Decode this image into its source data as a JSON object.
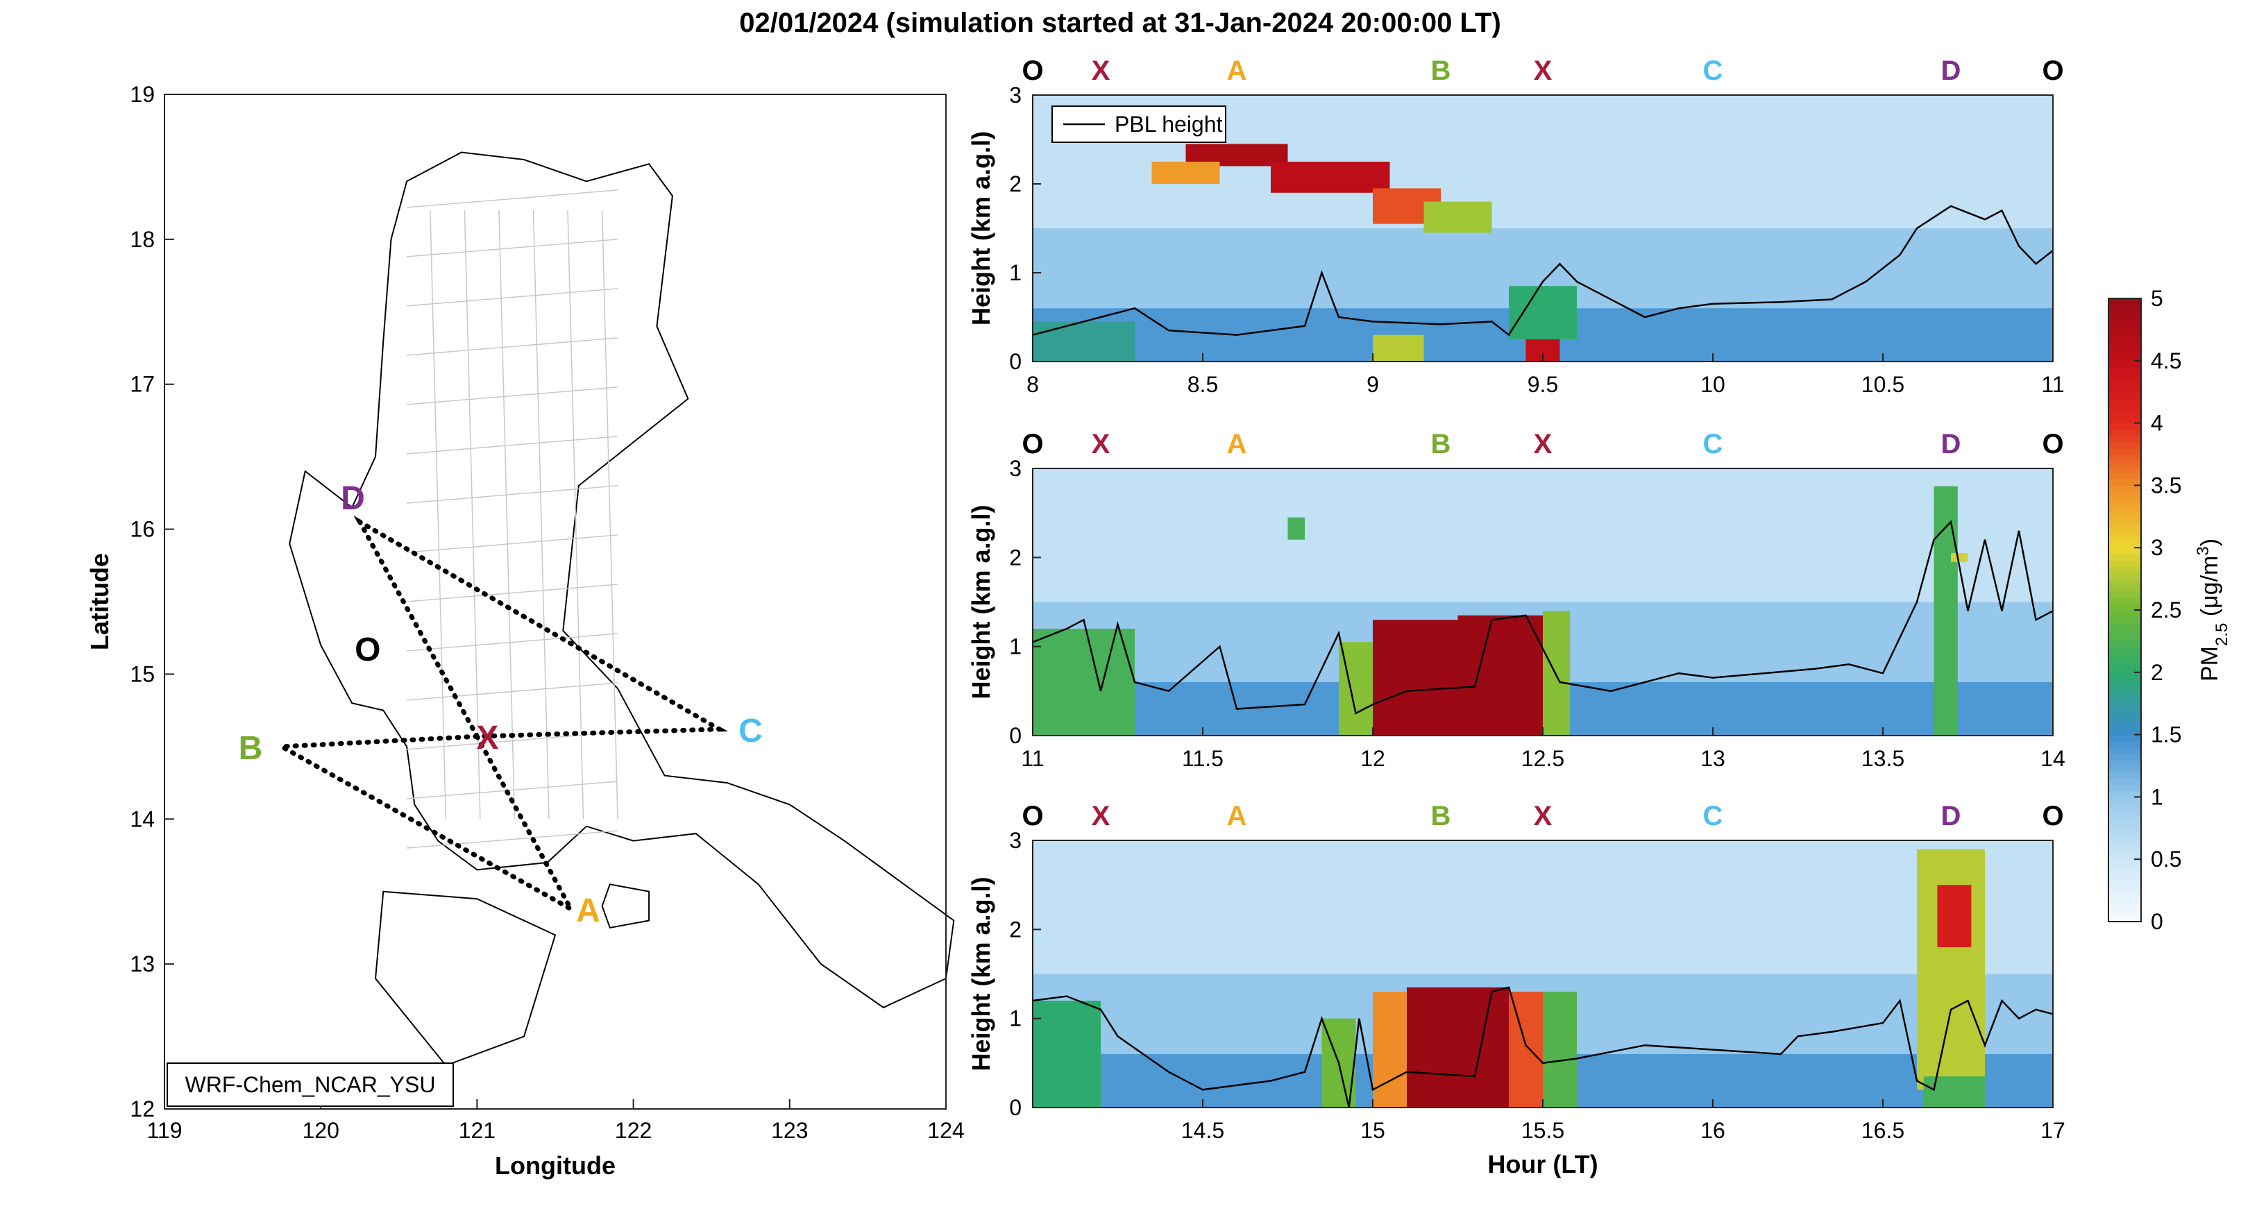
{
  "title": "02/01/2024 (simulation started at 31-Jan-2024 20:00:00 LT)",
  "colors": {
    "O": "#000000",
    "X": "#a8193a",
    "A": "#f2a81d",
    "B": "#77ac30",
    "C": "#4dbeee",
    "D": "#7e2f8e",
    "pbl": "#000000",
    "route": "#000000",
    "province": "#c8c8c8"
  },
  "map": {
    "xlabel": "Longitude",
    "ylabel": "Latitude",
    "xlim": [
      119,
      124
    ],
    "ylim": [
      12,
      19
    ],
    "xticks": [
      "119",
      "120",
      "121",
      "122",
      "123",
      "124"
    ],
    "yticks": [
      "12",
      "13",
      "14",
      "15",
      "16",
      "17",
      "18",
      "19"
    ],
    "model_label": "WRF-Chem_NCAR_YSU",
    "points": [
      {
        "label": "O",
        "lon": 120.3,
        "lat": 15.18
      },
      {
        "label": "X",
        "lon": 121.0,
        "lat": 14.57
      },
      {
        "label": "A",
        "lon": 121.6,
        "lat": 13.38
      },
      {
        "label": "B",
        "lon": 119.75,
        "lat": 14.5
      },
      {
        "label": "C",
        "lon": 122.55,
        "lat": 14.62
      },
      {
        "label": "D",
        "lon": 120.25,
        "lat": 16.05
      }
    ],
    "route": [
      "X",
      "A",
      "B",
      "X",
      "C",
      "D",
      "X"
    ]
  },
  "point_labels_top": [
    "O",
    "X",
    "A",
    "B",
    "X",
    "C",
    "D",
    "O"
  ],
  "colorbar": {
    "label_main": "PM",
    "label_sub": "2.5",
    "label_unit": " (μg/m",
    "label_unit_sup": "3",
    "label_close": ")",
    "range": [
      0,
      5
    ],
    "ticks": [
      "0",
      "0.5",
      "1",
      "1.5",
      "2",
      "2.5",
      "3",
      "3.5",
      "4",
      "4.5",
      "5"
    ]
  },
  "legend": {
    "pbl": "PBL height"
  },
  "chart_data": [
    {
      "type": "heatmap",
      "panel": 1,
      "xlim": [
        8,
        11
      ],
      "ylim": [
        0,
        3
      ],
      "xticks": [
        "8",
        "8.5",
        "9",
        "9.5",
        "10",
        "10.5",
        "11"
      ],
      "yticks": [
        "0",
        "1",
        "2",
        "3"
      ],
      "ylabel": "Height (km a.g.l)",
      "xlabel": "",
      "point_hours": [
        8.0,
        8.2,
        8.6,
        9.2,
        9.5,
        10.0,
        10.7,
        11.0
      ],
      "pbl_height": [
        [
          8.0,
          0.3
        ],
        [
          8.1,
          0.4
        ],
        [
          8.2,
          0.5
        ],
        [
          8.3,
          0.6
        ],
        [
          8.4,
          0.35
        ],
        [
          8.6,
          0.3
        ],
        [
          8.8,
          0.4
        ],
        [
          8.85,
          1.0
        ],
        [
          8.9,
          0.5
        ],
        [
          9.0,
          0.45
        ],
        [
          9.2,
          0.42
        ],
        [
          9.35,
          0.45
        ],
        [
          9.4,
          0.3
        ],
        [
          9.5,
          0.9
        ],
        [
          9.55,
          1.1
        ],
        [
          9.6,
          0.9
        ],
        [
          9.8,
          0.5
        ],
        [
          9.9,
          0.6
        ],
        [
          10.0,
          0.65
        ],
        [
          10.2,
          0.67
        ],
        [
          10.35,
          0.7
        ],
        [
          10.45,
          0.9
        ],
        [
          10.55,
          1.2
        ],
        [
          10.6,
          1.5
        ],
        [
          10.7,
          1.75
        ],
        [
          10.8,
          1.6
        ],
        [
          10.85,
          1.7
        ],
        [
          10.9,
          1.3
        ],
        [
          10.95,
          1.1
        ],
        [
          11.0,
          1.25
        ]
      ],
      "pm25_features": [
        {
          "t0": 8.45,
          "t1": 8.75,
          "z0": 2.2,
          "z1": 2.45,
          "v": 4.8
        },
        {
          "t0": 8.7,
          "t1": 9.05,
          "z0": 1.9,
          "z1": 2.25,
          "v": 4.6
        },
        {
          "t0": 9.0,
          "t1": 9.2,
          "z0": 1.55,
          "z1": 1.95,
          "v": 3.8
        },
        {
          "t0": 9.15,
          "t1": 9.35,
          "z0": 1.45,
          "z1": 1.8,
          "v": 2.7
        },
        {
          "t0": 8.35,
          "t1": 8.55,
          "z0": 2.0,
          "z1": 2.25,
          "v": 3.4
        },
        {
          "t0": 8.05,
          "t1": 8.25,
          "z0": 0.0,
          "z1": 0.22,
          "v": 4.9
        },
        {
          "t0": 9.45,
          "t1": 9.55,
          "z0": 0.0,
          "z1": 0.25,
          "v": 4.5
        },
        {
          "t0": 9.0,
          "t1": 9.15,
          "z0": 0.0,
          "z1": 0.3,
          "v": 2.8
        },
        {
          "t0": 8.0,
          "t1": 8.3,
          "z0": 0.0,
          "z1": 0.45,
          "v": 1.8
        },
        {
          "t0": 9.4,
          "t1": 9.6,
          "z0": 0.25,
          "z1": 0.85,
          "v": 2.0
        }
      ]
    },
    {
      "type": "heatmap",
      "panel": 2,
      "xlim": [
        11,
        14
      ],
      "ylim": [
        0,
        3
      ],
      "xticks": [
        "11",
        "11.5",
        "12",
        "12.5",
        "13",
        "13.5",
        "14"
      ],
      "yticks": [
        "0",
        "1",
        "2",
        "3"
      ],
      "ylabel": "Height (km a.g.l)",
      "xlabel": "",
      "point_hours": [
        11.0,
        11.2,
        11.6,
        12.2,
        12.5,
        13.0,
        13.7,
        14.0
      ],
      "pbl_height": [
        [
          11.0,
          1.05
        ],
        [
          11.1,
          1.2
        ],
        [
          11.15,
          1.3
        ],
        [
          11.2,
          0.5
        ],
        [
          11.25,
          1.25
        ],
        [
          11.3,
          0.6
        ],
        [
          11.4,
          0.5
        ],
        [
          11.55,
          1.0
        ],
        [
          11.6,
          0.3
        ],
        [
          11.8,
          0.35
        ],
        [
          11.9,
          1.15
        ],
        [
          11.95,
          0.25
        ],
        [
          12.0,
          0.35
        ],
        [
          12.1,
          0.5
        ],
        [
          12.3,
          0.55
        ],
        [
          12.35,
          1.3
        ],
        [
          12.45,
          1.35
        ],
        [
          12.55,
          0.6
        ],
        [
          12.7,
          0.5
        ],
        [
          12.9,
          0.7
        ],
        [
          13.0,
          0.65
        ],
        [
          13.3,
          0.75
        ],
        [
          13.4,
          0.8
        ],
        [
          13.5,
          0.7
        ],
        [
          13.55,
          1.1
        ],
        [
          13.6,
          1.5
        ],
        [
          13.65,
          2.2
        ],
        [
          13.7,
          2.4
        ],
        [
          13.75,
          1.4
        ],
        [
          13.8,
          2.2
        ],
        [
          13.85,
          1.4
        ],
        [
          13.9,
          2.3
        ],
        [
          13.95,
          1.3
        ],
        [
          14.0,
          1.4
        ]
      ],
      "pm25_features": [
        {
          "t0": 12.0,
          "t1": 12.5,
          "z0": 0.0,
          "z1": 1.3,
          "v": 5.0
        },
        {
          "t0": 12.25,
          "t1": 12.5,
          "z0": 0.0,
          "z1": 1.35,
          "v": 5.0
        },
        {
          "t0": 11.9,
          "t1": 12.0,
          "z0": 0.0,
          "z1": 1.05,
          "v": 2.6
        },
        {
          "t0": 12.5,
          "t1": 12.58,
          "z0": 0.0,
          "z1": 1.4,
          "v": 2.6
        },
        {
          "t0": 11.0,
          "t1": 11.3,
          "z0": 0.0,
          "z1": 1.2,
          "v": 2.2
        },
        {
          "t0": 11.75,
          "t1": 11.8,
          "z0": 2.2,
          "z1": 2.45,
          "v": 2.2
        },
        {
          "t0": 13.65,
          "t1": 13.72,
          "z0": 0.0,
          "z1": 2.8,
          "v": 2.2
        },
        {
          "t0": 13.7,
          "t1": 13.75,
          "z0": 1.95,
          "z1": 2.05,
          "v": 2.9
        }
      ]
    },
    {
      "type": "heatmap",
      "panel": 3,
      "xlim": [
        14,
        17
      ],
      "ylim": [
        0,
        3
      ],
      "xticks": [
        "14.5",
        "15",
        "15.5",
        "16",
        "16.5",
        "17"
      ],
      "yticks": [
        "0",
        "1",
        "2",
        "3"
      ],
      "ylabel": "Height (km a.g.l)",
      "xlabel": "Hour (LT)",
      "point_hours": [
        14.0,
        14.2,
        14.6,
        15.2,
        15.5,
        16.0,
        16.7,
        17.0
      ],
      "pbl_height": [
        [
          14.0,
          1.2
        ],
        [
          14.1,
          1.25
        ],
        [
          14.2,
          1.1
        ],
        [
          14.25,
          0.8
        ],
        [
          14.4,
          0.4
        ],
        [
          14.5,
          0.2
        ],
        [
          14.7,
          0.3
        ],
        [
          14.8,
          0.4
        ],
        [
          14.85,
          1.0
        ],
        [
          14.9,
          0.5
        ],
        [
          14.93,
          0.0
        ],
        [
          14.96,
          1.0
        ],
        [
          15.0,
          0.2
        ],
        [
          15.1,
          0.4
        ],
        [
          15.3,
          0.35
        ],
        [
          15.35,
          1.3
        ],
        [
          15.4,
          1.35
        ],
        [
          15.45,
          0.7
        ],
        [
          15.5,
          0.5
        ],
        [
          15.6,
          0.55
        ],
        [
          15.8,
          0.7
        ],
        [
          16.0,
          0.65
        ],
        [
          16.2,
          0.6
        ],
        [
          16.25,
          0.8
        ],
        [
          16.35,
          0.85
        ],
        [
          16.5,
          0.95
        ],
        [
          16.55,
          1.2
        ],
        [
          16.6,
          0.3
        ],
        [
          16.65,
          0.2
        ],
        [
          16.7,
          1.1
        ],
        [
          16.75,
          1.2
        ],
        [
          16.8,
          0.7
        ],
        [
          16.85,
          1.2
        ],
        [
          16.9,
          1.0
        ],
        [
          16.95,
          1.1
        ],
        [
          17.0,
          1.05
        ]
      ],
      "pm25_features": [
        {
          "t0": 15.1,
          "t1": 15.4,
          "z0": 0.0,
          "z1": 1.35,
          "v": 5.0
        },
        {
          "t0": 15.0,
          "t1": 15.1,
          "z0": 0.0,
          "z1": 1.3,
          "v": 3.5
        },
        {
          "t0": 15.4,
          "t1": 15.5,
          "z0": 0.0,
          "z1": 1.3,
          "v": 3.8
        },
        {
          "t0": 15.5,
          "t1": 15.6,
          "z0": 0.0,
          "z1": 1.3,
          "v": 2.3
        },
        {
          "t0": 14.85,
          "t1": 14.95,
          "z0": 0.0,
          "z1": 1.0,
          "v": 2.5
        },
        {
          "t0": 14.0,
          "t1": 14.2,
          "z0": 0.0,
          "z1": 1.2,
          "v": 2.0
        },
        {
          "t0": 16.6,
          "t1": 16.8,
          "z0": 0.2,
          "z1": 2.9,
          "v": 2.8
        },
        {
          "t0": 16.66,
          "t1": 16.76,
          "z0": 1.8,
          "z1": 2.5,
          "v": 4.2
        },
        {
          "t0": 16.62,
          "t1": 16.8,
          "z0": 0.0,
          "z1": 0.35,
          "v": 2.2
        }
      ]
    }
  ]
}
